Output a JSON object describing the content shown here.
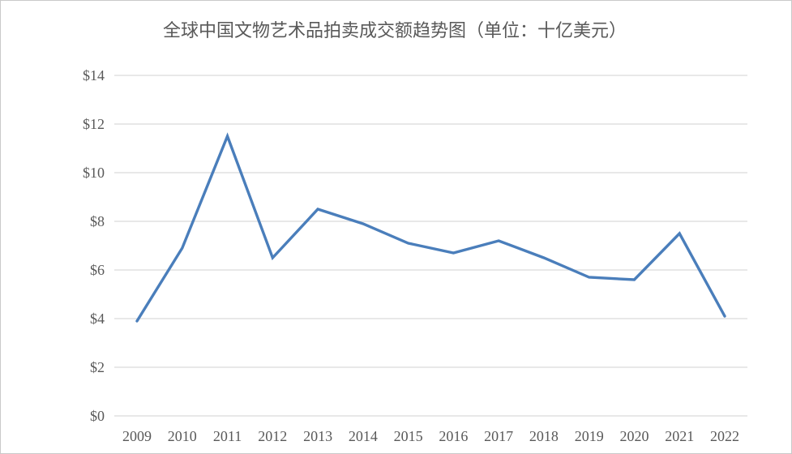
{
  "chart_data": {
    "type": "line",
    "title": "全球中国文物艺术品拍卖成交额趋势图（单位：十亿美元）",
    "categories": [
      "2009",
      "2010",
      "2011",
      "2012",
      "2013",
      "2014",
      "2015",
      "2016",
      "2017",
      "2018",
      "2019",
      "2020",
      "2021",
      "2022"
    ],
    "series": [
      {
        "name": "全球中国文物艺术品拍卖成交额",
        "values": [
          3.9,
          6.9,
          11.5,
          6.5,
          8.5,
          7.9,
          7.1,
          6.7,
          7.2,
          6.5,
          5.7,
          5.6,
          7.5,
          4.1
        ]
      }
    ],
    "xlabel": "",
    "ylabel": "十亿美元",
    "ylim": [
      0,
      14
    ],
    "y_tick_step": 2,
    "y_ticks": [
      {
        "value": 0,
        "label": "$0"
      },
      {
        "value": 2,
        "label": "$2"
      },
      {
        "value": 4,
        "label": "$4"
      },
      {
        "value": 6,
        "label": "$6"
      },
      {
        "value": 8,
        "label": "$8"
      },
      {
        "value": 10,
        "label": "$10"
      },
      {
        "value": 12,
        "label": "$12"
      },
      {
        "value": 14,
        "label": "$14"
      }
    ],
    "grid": true,
    "legend": "none",
    "colors": {
      "line": "#4a7ebb",
      "gridline": "#d9d9d9",
      "text": "#595959",
      "background": "#ffffff",
      "frame_border": "#c9c9c9"
    }
  }
}
